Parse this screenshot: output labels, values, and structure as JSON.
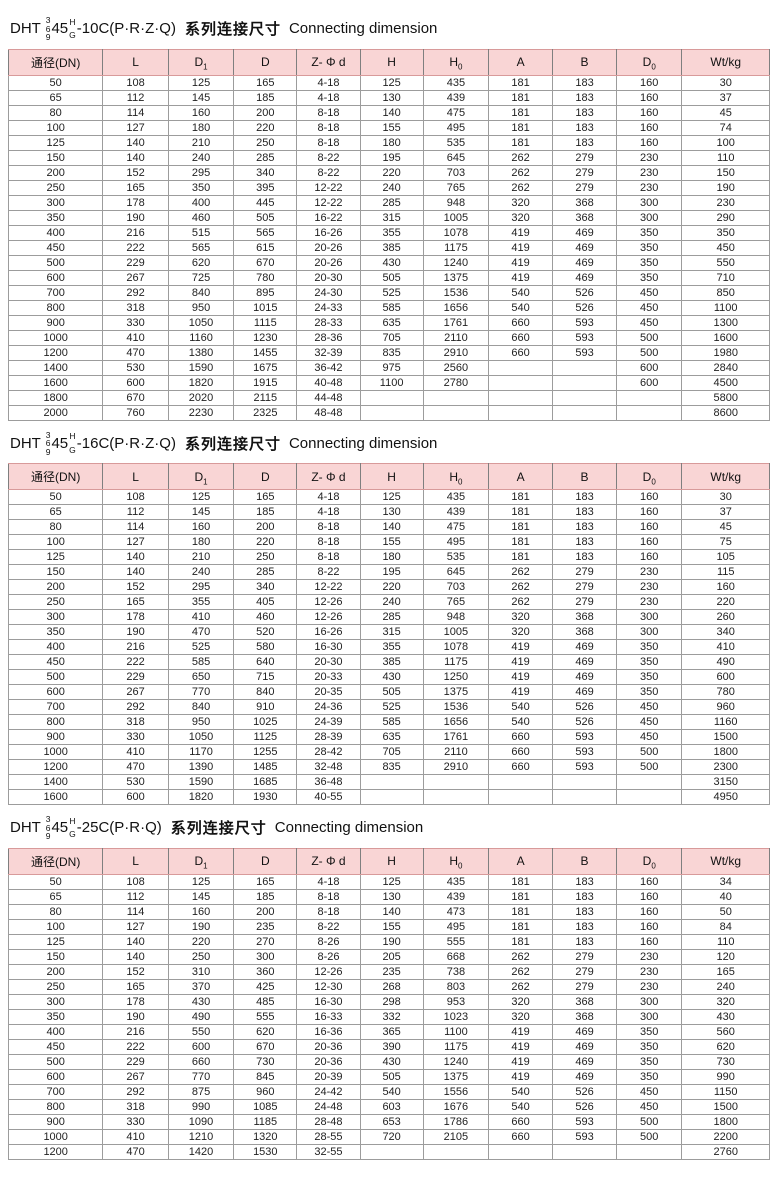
{
  "columns": [
    {
      "label": "通径(DN)",
      "sub": ""
    },
    {
      "label": "L",
      "sub": ""
    },
    {
      "label": "D",
      "sub": "1"
    },
    {
      "label": "D",
      "sub": ""
    },
    {
      "label": "Z- Φ d",
      "sub": ""
    },
    {
      "label": "H",
      "sub": ""
    },
    {
      "label": "H",
      "sub": "0"
    },
    {
      "label": "A",
      "sub": ""
    },
    {
      "label": "B",
      "sub": ""
    },
    {
      "label": "D",
      "sub": "0"
    },
    {
      "label": "Wt/kg",
      "sub": ""
    }
  ],
  "colors": {
    "header_bg": "#f9d5d5",
    "header_line": "#d89a9a",
    "grid_line": "#9c9c9c",
    "table_end_dash": "#f0a2a2"
  },
  "tables": [
    {
      "title": {
        "prefix": "DHT ",
        "stack": [
          "3",
          "6",
          "9"
        ],
        "mid": "45",
        "sup": "H",
        "sub": "G",
        "suffix": "-10C(P·R·Z·Q)",
        "cn": "系列连接尺寸",
        "en": "Connecting dimension"
      },
      "rows": [
        [
          "50",
          "108",
          "125",
          "165",
          "4-18",
          "125",
          "435",
          "181",
          "183",
          "160",
          "30"
        ],
        [
          "65",
          "112",
          "145",
          "185",
          "4-18",
          "130",
          "439",
          "181",
          "183",
          "160",
          "37"
        ],
        [
          "80",
          "114",
          "160",
          "200",
          "8-18",
          "140",
          "475",
          "181",
          "183",
          "160",
          "45"
        ],
        [
          "100",
          "127",
          "180",
          "220",
          "8-18",
          "155",
          "495",
          "181",
          "183",
          "160",
          "74"
        ],
        [
          "125",
          "140",
          "210",
          "250",
          "8-18",
          "180",
          "535",
          "181",
          "183",
          "160",
          "100"
        ],
        [
          "150",
          "140",
          "240",
          "285",
          "8-22",
          "195",
          "645",
          "262",
          "279",
          "230",
          "110"
        ],
        [
          "200",
          "152",
          "295",
          "340",
          "8-22",
          "220",
          "703",
          "262",
          "279",
          "230",
          "150"
        ],
        [
          "250",
          "165",
          "350",
          "395",
          "12-22",
          "240",
          "765",
          "262",
          "279",
          "230",
          "190"
        ],
        [
          "300",
          "178",
          "400",
          "445",
          "12-22",
          "285",
          "948",
          "320",
          "368",
          "300",
          "230"
        ],
        [
          "350",
          "190",
          "460",
          "505",
          "16-22",
          "315",
          "1005",
          "320",
          "368",
          "300",
          "290"
        ],
        [
          "400",
          "216",
          "515",
          "565",
          "16-26",
          "355",
          "1078",
          "419",
          "469",
          "350",
          "350"
        ],
        [
          "450",
          "222",
          "565",
          "615",
          "20-26",
          "385",
          "1175",
          "419",
          "469",
          "350",
          "450"
        ],
        [
          "500",
          "229",
          "620",
          "670",
          "20-26",
          "430",
          "1240",
          "419",
          "469",
          "350",
          "550"
        ],
        [
          "600",
          "267",
          "725",
          "780",
          "20-30",
          "505",
          "1375",
          "419",
          "469",
          "350",
          "710"
        ],
        [
          "700",
          "292",
          "840",
          "895",
          "24-30",
          "525",
          "1536",
          "540",
          "526",
          "450",
          "850"
        ],
        [
          "800",
          "318",
          "950",
          "1015",
          "24-33",
          "585",
          "1656",
          "540",
          "526",
          "450",
          "1100"
        ],
        [
          "900",
          "330",
          "1050",
          "1115",
          "28-33",
          "635",
          "1761",
          "660",
          "593",
          "450",
          "1300"
        ],
        [
          "1000",
          "410",
          "1160",
          "1230",
          "28-36",
          "705",
          "2110",
          "660",
          "593",
          "500",
          "1600"
        ],
        [
          "1200",
          "470",
          "1380",
          "1455",
          "32-39",
          "835",
          "2910",
          "660",
          "593",
          "500",
          "1980"
        ],
        [
          "1400",
          "530",
          "1590",
          "1675",
          "36-42",
          "975",
          "2560",
          "",
          "",
          "600",
          "2840"
        ],
        [
          "1600",
          "600",
          "1820",
          "1915",
          "40-48",
          "1100",
          "2780",
          "",
          "",
          "600",
          "4500"
        ],
        [
          "1800",
          "670",
          "2020",
          "2115",
          "44-48",
          "",
          "",
          "",
          "",
          "",
          "5800"
        ],
        [
          "2000",
          "760",
          "2230",
          "2325",
          "48-48",
          "",
          "",
          "",
          "",
          "",
          "8600"
        ]
      ]
    },
    {
      "title": {
        "prefix": "DHT ",
        "stack": [
          "3",
          "6",
          "9"
        ],
        "mid": "45",
        "sup": "H",
        "sub": "G",
        "suffix": "-16C(P·R·Z·Q)",
        "cn": "系列连接尺寸",
        "en": "Connecting dimension"
      },
      "rows": [
        [
          "50",
          "108",
          "125",
          "165",
          "4-18",
          "125",
          "435",
          "181",
          "183",
          "160",
          "30"
        ],
        [
          "65",
          "112",
          "145",
          "185",
          "4-18",
          "130",
          "439",
          "181",
          "183",
          "160",
          "37"
        ],
        [
          "80",
          "114",
          "160",
          "200",
          "8-18",
          "140",
          "475",
          "181",
          "183",
          "160",
          "45"
        ],
        [
          "100",
          "127",
          "180",
          "220",
          "8-18",
          "155",
          "495",
          "181",
          "183",
          "160",
          "75"
        ],
        [
          "125",
          "140",
          "210",
          "250",
          "8-18",
          "180",
          "535",
          "181",
          "183",
          "160",
          "105"
        ],
        [
          "150",
          "140",
          "240",
          "285",
          "8-22",
          "195",
          "645",
          "262",
          "279",
          "230",
          "115"
        ],
        [
          "200",
          "152",
          "295",
          "340",
          "12-22",
          "220",
          "703",
          "262",
          "279",
          "230",
          "160"
        ],
        [
          "250",
          "165",
          "355",
          "405",
          "12-26",
          "240",
          "765",
          "262",
          "279",
          "230",
          "220"
        ],
        [
          "300",
          "178",
          "410",
          "460",
          "12-26",
          "285",
          "948",
          "320",
          "368",
          "300",
          "260"
        ],
        [
          "350",
          "190",
          "470",
          "520",
          "16-26",
          "315",
          "1005",
          "320",
          "368",
          "300",
          "340"
        ],
        [
          "400",
          "216",
          "525",
          "580",
          "16-30",
          "355",
          "1078",
          "419",
          "469",
          "350",
          "410"
        ],
        [
          "450",
          "222",
          "585",
          "640",
          "20-30",
          "385",
          "1175",
          "419",
          "469",
          "350",
          "490"
        ],
        [
          "500",
          "229",
          "650",
          "715",
          "20-33",
          "430",
          "1250",
          "419",
          "469",
          "350",
          "600"
        ],
        [
          "600",
          "267",
          "770",
          "840",
          "20-35",
          "505",
          "1375",
          "419",
          "469",
          "350",
          "780"
        ],
        [
          "700",
          "292",
          "840",
          "910",
          "24-36",
          "525",
          "1536",
          "540",
          "526",
          "450",
          "960"
        ],
        [
          "800",
          "318",
          "950",
          "1025",
          "24-39",
          "585",
          "1656",
          "540",
          "526",
          "450",
          "1160"
        ],
        [
          "900",
          "330",
          "1050",
          "1125",
          "28-39",
          "635",
          "1761",
          "660",
          "593",
          "450",
          "1500"
        ],
        [
          "1000",
          "410",
          "1170",
          "1255",
          "28-42",
          "705",
          "2110",
          "660",
          "593",
          "500",
          "1800"
        ],
        [
          "1200",
          "470",
          "1390",
          "1485",
          "32-48",
          "835",
          "2910",
          "660",
          "593",
          "500",
          "2300"
        ],
        [
          "1400",
          "530",
          "1590",
          "1685",
          "36-48",
          "",
          "",
          "",
          "",
          "",
          "3150"
        ],
        [
          "1600",
          "600",
          "1820",
          "1930",
          "40-55",
          "",
          "",
          "",
          "",
          "",
          "4950"
        ]
      ]
    },
    {
      "title": {
        "prefix": "DHT ",
        "stack": [
          "3",
          "6",
          "9"
        ],
        "mid": "45",
        "sup": "H",
        "sub": "G",
        "suffix": "-25C(P·R·Q)",
        "cn": "系列连接尺寸",
        "en": "Connecting dimension"
      },
      "rows": [
        [
          "50",
          "108",
          "125",
          "165",
          "4-18",
          "125",
          "435",
          "181",
          "183",
          "160",
          "34"
        ],
        [
          "65",
          "112",
          "145",
          "185",
          "8-18",
          "130",
          "439",
          "181",
          "183",
          "160",
          "40"
        ],
        [
          "80",
          "114",
          "160",
          "200",
          "8-18",
          "140",
          "473",
          "181",
          "183",
          "160",
          "50"
        ],
        [
          "100",
          "127",
          "190",
          "235",
          "8-22",
          "155",
          "495",
          "181",
          "183",
          "160",
          "84"
        ],
        [
          "125",
          "140",
          "220",
          "270",
          "8-26",
          "190",
          "555",
          "181",
          "183",
          "160",
          "110"
        ],
        [
          "150",
          "140",
          "250",
          "300",
          "8-26",
          "205",
          "668",
          "262",
          "279",
          "230",
          "120"
        ],
        [
          "200",
          "152",
          "310",
          "360",
          "12-26",
          "235",
          "738",
          "262",
          "279",
          "230",
          "165"
        ],
        [
          "250",
          "165",
          "370",
          "425",
          "12-30",
          "268",
          "803",
          "262",
          "279",
          "230",
          "240"
        ],
        [
          "300",
          "178",
          "430",
          "485",
          "16-30",
          "298",
          "953",
          "320",
          "368",
          "300",
          "320"
        ],
        [
          "350",
          "190",
          "490",
          "555",
          "16-33",
          "332",
          "1023",
          "320",
          "368",
          "300",
          "430"
        ],
        [
          "400",
          "216",
          "550",
          "620",
          "16-36",
          "365",
          "1100",
          "419",
          "469",
          "350",
          "560"
        ],
        [
          "450",
          "222",
          "600",
          "670",
          "20-36",
          "390",
          "1175",
          "419",
          "469",
          "350",
          "620"
        ],
        [
          "500",
          "229",
          "660",
          "730",
          "20-36",
          "430",
          "1240",
          "419",
          "469",
          "350",
          "730"
        ],
        [
          "600",
          "267",
          "770",
          "845",
          "20-39",
          "505",
          "1375",
          "419",
          "469",
          "350",
          "990"
        ],
        [
          "700",
          "292",
          "875",
          "960",
          "24-42",
          "540",
          "1556",
          "540",
          "526",
          "450",
          "1150"
        ],
        [
          "800",
          "318",
          "990",
          "1085",
          "24-48",
          "603",
          "1676",
          "540",
          "526",
          "450",
          "1500"
        ],
        [
          "900",
          "330",
          "1090",
          "1185",
          "28-48",
          "653",
          "1786",
          "660",
          "593",
          "500",
          "1800"
        ],
        [
          "1000",
          "410",
          "1210",
          "1320",
          "28-55",
          "720",
          "2105",
          "660",
          "593",
          "500",
          "2200"
        ],
        [
          "1200",
          "470",
          "1420",
          "1530",
          "32-55",
          "",
          "",
          "",
          "",
          "",
          "2760"
        ]
      ]
    }
  ]
}
